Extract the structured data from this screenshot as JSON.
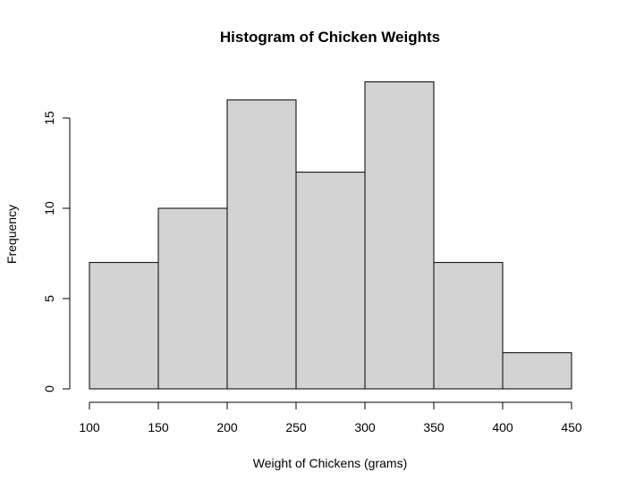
{
  "chart_data": {
    "type": "bar",
    "title": "Histogram of Chicken Weights",
    "xlabel": "Weight of Chickens (grams)",
    "ylabel": "Frequency",
    "bins": [
      {
        "from": 100,
        "to": 150,
        "count": 7
      },
      {
        "from": 150,
        "to": 200,
        "count": 10
      },
      {
        "from": 200,
        "to": 250,
        "count": 16
      },
      {
        "from": 250,
        "to": 300,
        "count": 12
      },
      {
        "from": 300,
        "to": 350,
        "count": 17
      },
      {
        "from": 350,
        "to": 400,
        "count": 7
      },
      {
        "from": 400,
        "to": 450,
        "count": 2
      }
    ],
    "x_ticks": [
      100,
      150,
      200,
      250,
      300,
      350,
      400,
      450
    ],
    "y_ticks": [
      0,
      5,
      10,
      15
    ],
    "xlim": [
      100,
      450
    ],
    "ylim": [
      0,
      17
    ],
    "grid": false,
    "colors": {
      "bar_fill": "#d3d3d3",
      "bar_stroke": "#000000"
    }
  }
}
